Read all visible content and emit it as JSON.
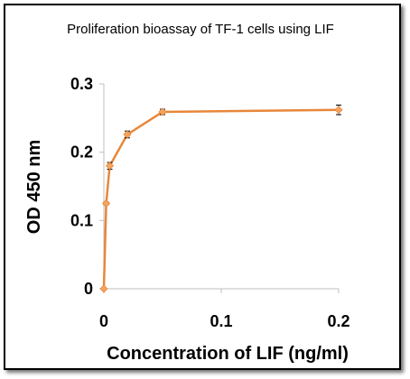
{
  "chart_data": {
    "type": "line",
    "title": "Proliferation bioassay of TF-1 cells using LIF",
    "xlabel": "Concentration of LIF (ng/ml)",
    "ylabel": "OD  450 nm",
    "xlim": [
      0,
      0.2
    ],
    "ylim": [
      0,
      0.3
    ],
    "xticks": [
      0,
      0.1,
      0.2
    ],
    "xtick_labels": [
      "0",
      "0.1",
      "0.2"
    ],
    "yticks": [
      0,
      0.1,
      0.2,
      0.3
    ],
    "ytick_labels": [
      "0",
      "0.1",
      "0.2",
      "0.3"
    ],
    "grid": false,
    "legend": "none",
    "series": [
      {
        "color": "#E8873A",
        "marker_color": "#F4A460",
        "x": [
          0,
          0.002,
          0.005,
          0.02,
          0.05,
          0.2
        ],
        "y": [
          0.0,
          0.125,
          0.18,
          0.226,
          0.259,
          0.262
        ],
        "error": [
          0,
          0.002,
          0.005,
          0.005,
          0.004,
          0.007
        ]
      }
    ]
  }
}
